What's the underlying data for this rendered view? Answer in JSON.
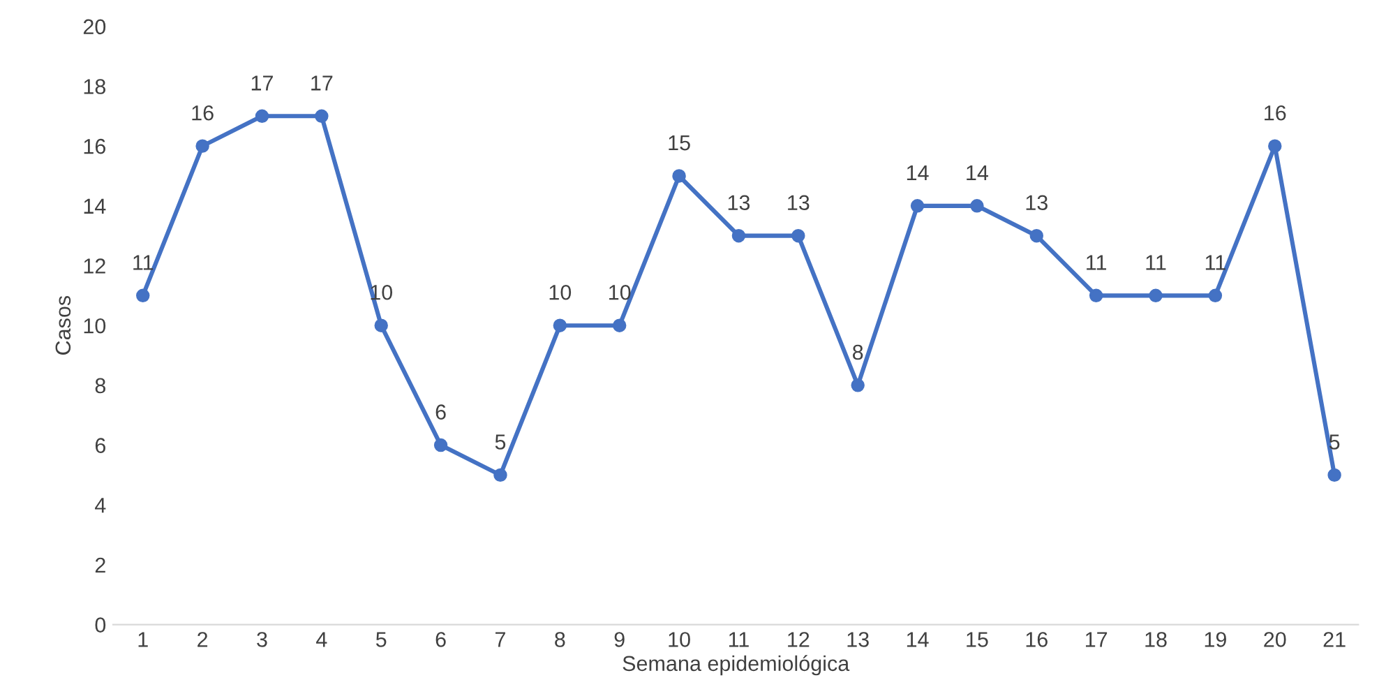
{
  "chart_data": {
    "type": "line",
    "xlabel": "Semana epidemiológica",
    "ylabel": "Casos",
    "categories": [
      "1",
      "2",
      "3",
      "4",
      "5",
      "6",
      "7",
      "8",
      "9",
      "10",
      "11",
      "12",
      "13",
      "14",
      "15",
      "16",
      "17",
      "18",
      "19",
      "20",
      "21"
    ],
    "series": [
      {
        "color": "#4472c4",
        "values": [
          11,
          16,
          17,
          17,
          10,
          6,
          5,
          10,
          10,
          15,
          13,
          13,
          8,
          14,
          14,
          13,
          11,
          11,
          11,
          16,
          5
        ]
      }
    ],
    "ylim": [
      0,
      20
    ],
    "yticks": [
      0,
      2,
      4,
      6,
      8,
      10,
      12,
      14,
      16,
      18,
      20
    ],
    "grid": false,
    "legend": false,
    "marker": "circle",
    "line_style": "solid",
    "data_labels": true
  }
}
